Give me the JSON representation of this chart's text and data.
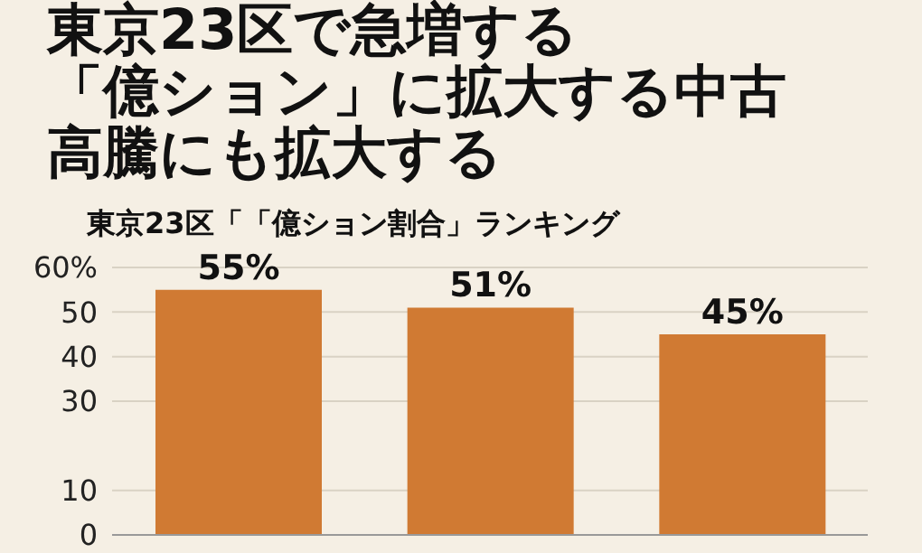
{
  "chart_data": {
    "type": "bar",
    "title": "東京23区で急増する「億ション」に拡大する中古高騰にも拡大する",
    "subtitle": "東京23区「「億ション割合」ランキング",
    "categories": [
      null,
      null,
      null
    ],
    "values": [
      55,
      51,
      45
    ],
    "value_labels": [
      "55%",
      "51%",
      "45%"
    ],
    "color": "#d07a33",
    "ylim": [
      0,
      60
    ],
    "yticks": [
      0,
      10,
      30,
      40,
      50,
      {
        "value": 60,
        "label": "60%"
      }
    ],
    "grid": "y"
  }
}
